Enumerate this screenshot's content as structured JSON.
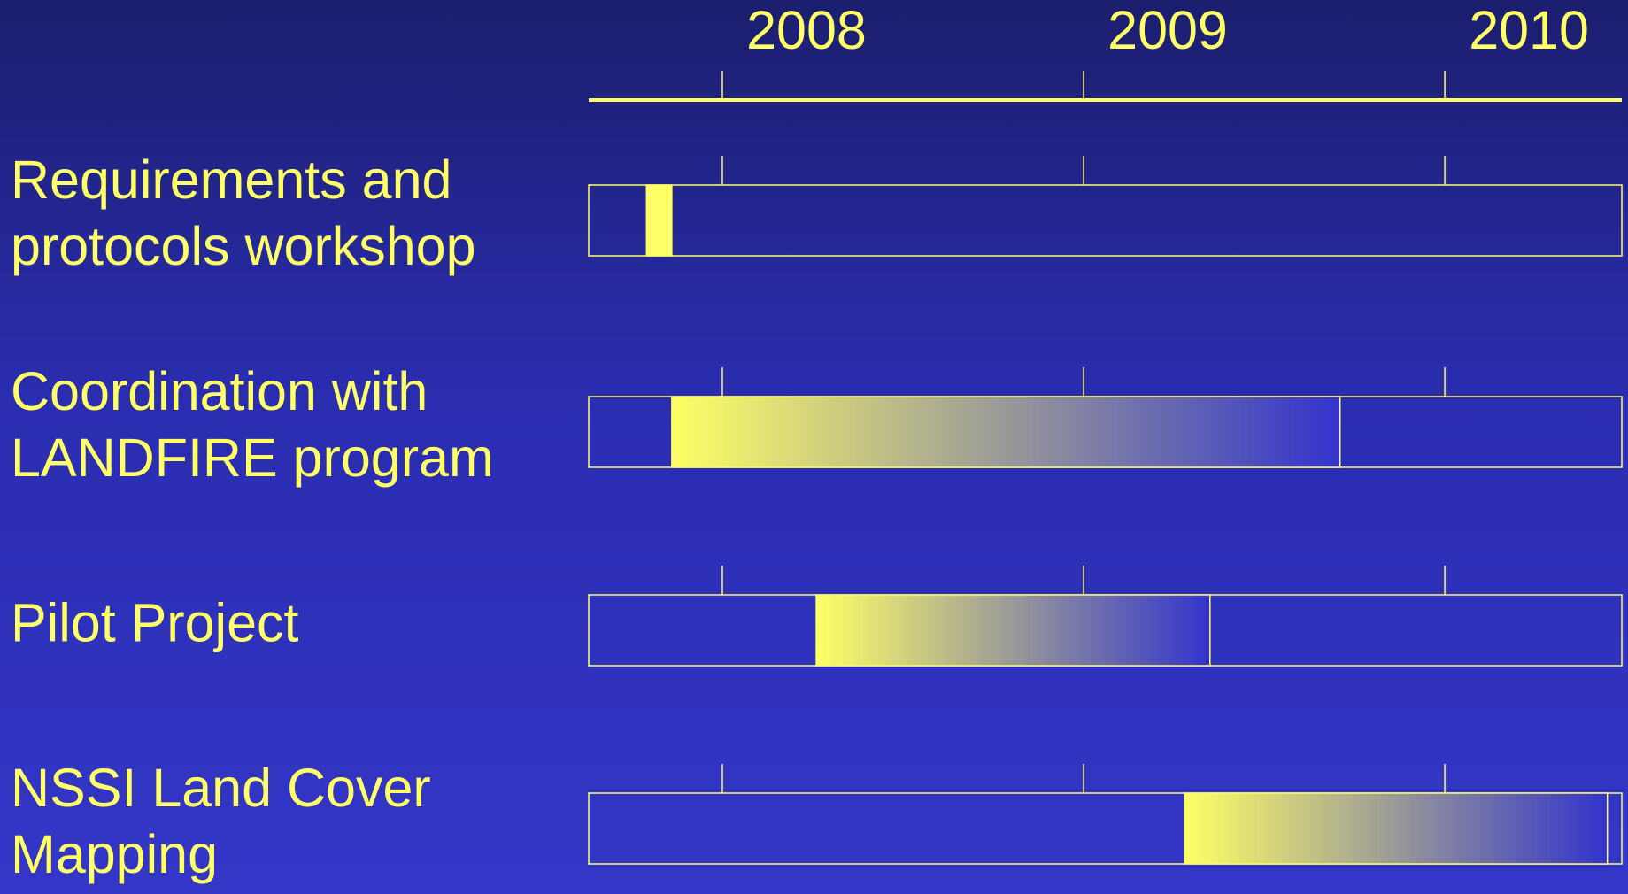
{
  "chart_data": {
    "type": "gantt",
    "xlim": [
      2007.63,
      2010.49
    ],
    "xticks": [
      2008,
      2009,
      2010
    ],
    "color": "#ffff66",
    "tasks": [
      {
        "name": "Requirements and protocols workshop",
        "start": 2007.79,
        "end": 2007.86,
        "gradient": false
      },
      {
        "name": "Coordination with LANDFIRE program",
        "start": 2007.86,
        "end": 2009.71,
        "gradient": true
      },
      {
        "name": "Pilot Project",
        "start": 2008.26,
        "end": 2009.35,
        "gradient": true
      },
      {
        "name": "NSSI Land Cover Mapping",
        "start": 2009.28,
        "end": 2010.45,
        "gradient": true
      }
    ]
  }
}
